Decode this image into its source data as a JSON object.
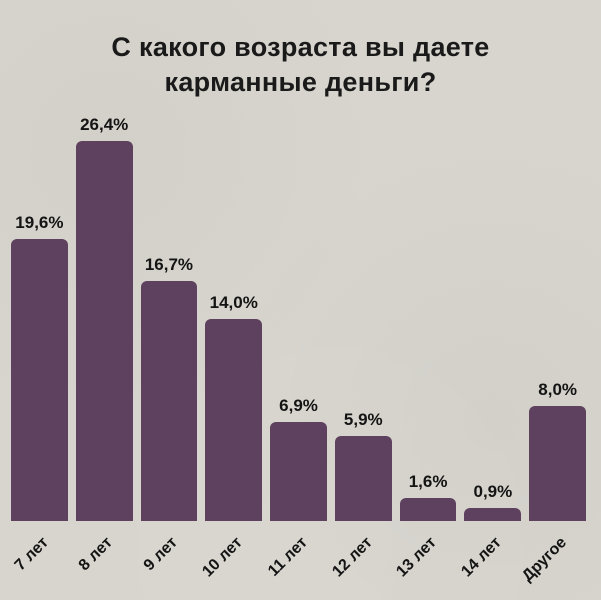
{
  "title": "С какого возраста вы даете\nкарманные деньги?",
  "chart_data": {
    "type": "bar",
    "title": "С какого возраста вы даете карманные деньги?",
    "categories": [
      "7 лет",
      "8 лет",
      "9 лет",
      "10 лет",
      "11 лет",
      "12 лет",
      "13 лет",
      "14 лет",
      "Другое"
    ],
    "values": [
      19.6,
      26.4,
      16.7,
      14.0,
      6.9,
      5.9,
      1.6,
      0.9,
      8.0
    ],
    "value_labels": [
      "19,6%",
      "26,4%",
      "16,7%",
      "14,0%",
      "6,9%",
      "5,9%",
      "1,6%",
      "0,9%",
      "8,0%"
    ],
    "xlabel": "",
    "ylabel": "",
    "ylim": [
      0,
      28
    ],
    "grid": false,
    "legend": false,
    "bar_color": "#5d415e",
    "background_color": "#d8d5ce",
    "text_color": "#1a1a1a",
    "x_tick_rotation_deg": -45,
    "value_label_position": "above-bar"
  }
}
